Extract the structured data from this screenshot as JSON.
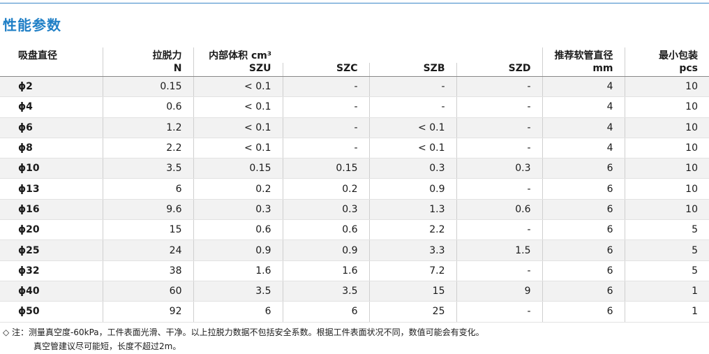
{
  "title": "性能参数",
  "header": {
    "c0": "吸盘直径",
    "c1_top": "拉脱力",
    "c1_bot": "N",
    "c2_top": "内部体积 cm³",
    "c2_bot": "SZU",
    "c3_bot": "SZC",
    "c4_bot": "SZB",
    "c5_bot": "SZD",
    "c6_top": "推荐软管直径",
    "c6_bot": "mm",
    "c7_top": "最小包装",
    "c7_bot": "pcs"
  },
  "rows": [
    [
      "ϕ2",
      "0.15",
      "< 0.1",
      "-",
      "-",
      "-",
      "4",
      "10"
    ],
    [
      "ϕ4",
      "0.6",
      "< 0.1",
      "-",
      "-",
      "-",
      "4",
      "10"
    ],
    [
      "ϕ6",
      "1.2",
      "< 0.1",
      "-",
      "< 0.1",
      "-",
      "4",
      "10"
    ],
    [
      "ϕ8",
      "2.2",
      "< 0.1",
      "-",
      "< 0.1",
      "-",
      "4",
      "10"
    ],
    [
      "ϕ10",
      "3.5",
      "0.15",
      "0.15",
      "0.3",
      "0.3",
      "6",
      "10"
    ],
    [
      "ϕ13",
      "6",
      "0.2",
      "0.2",
      "0.9",
      "-",
      "6",
      "10"
    ],
    [
      "ϕ16",
      "9.6",
      "0.3",
      "0.3",
      "1.3",
      "0.6",
      "6",
      "10"
    ],
    [
      "ϕ20",
      "15",
      "0.6",
      "0.6",
      "2.2",
      "-",
      "6",
      "5"
    ],
    [
      "ϕ25",
      "24",
      "0.9",
      "0.9",
      "3.3",
      "1.5",
      "6",
      "5"
    ],
    [
      "ϕ32",
      "38",
      "1.6",
      "1.6",
      "7.2",
      "-",
      "6",
      "5"
    ],
    [
      "ϕ40",
      "60",
      "3.5",
      "3.5",
      "15",
      "9",
      "6",
      "1"
    ],
    [
      "ϕ50",
      "92",
      "6",
      "6",
      "25",
      "-",
      "6",
      "1"
    ]
  ],
  "note_line1": "◇ 注：测量真空度-60kPa，工件表面光滑、干净。以上拉脱力数据不包括安全系数。根据工件表面状况不同，数值可能会有变化。",
  "note_line2": "真空管建议尽可能短，长度不超过2m。"
}
